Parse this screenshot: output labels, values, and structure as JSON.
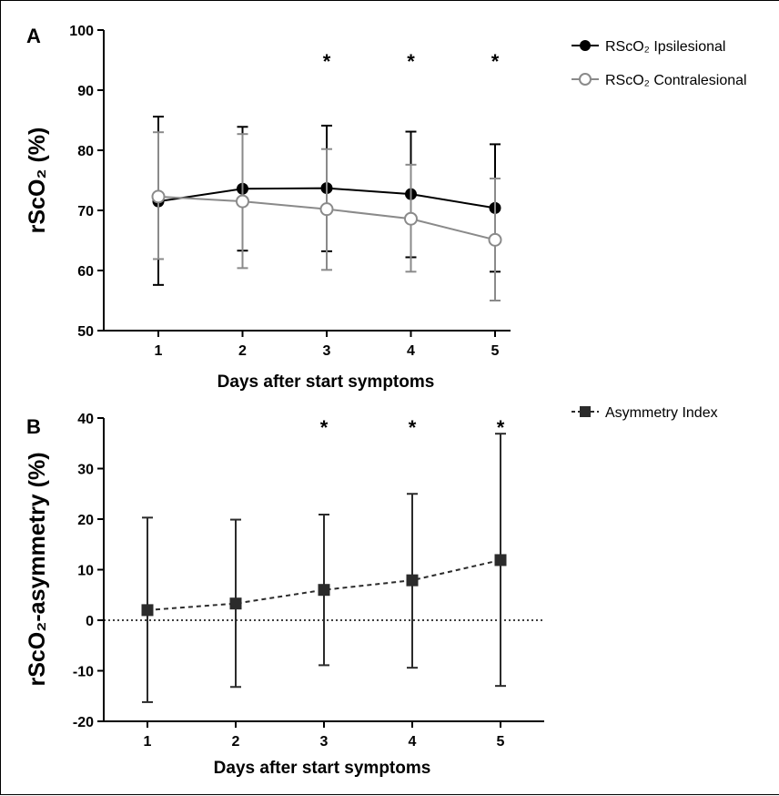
{
  "chart_data": [
    {
      "type": "line",
      "panel_label": "A",
      "xlabel": "Days after start symptoms",
      "ylabel": "rScO₂ (%)",
      "x": [
        1,
        2,
        3,
        4,
        5
      ],
      "x_ticks": [
        "1",
        "2",
        "3",
        "4",
        "5"
      ],
      "ylim": [
        50,
        100
      ],
      "y_ticks": [
        "50",
        "60",
        "70",
        "80",
        "90",
        "100"
      ],
      "grid": false,
      "legend": "top-right",
      "significance": [
        3,
        4,
        5
      ],
      "significance_marker": "*",
      "series": [
        {
          "name": "RScO₂ Ipsilesional",
          "values": [
            71.5,
            73.6,
            73.7,
            72.7,
            70.4
          ],
          "err_upper": [
            85.6,
            83.9,
            84.1,
            83.1,
            81.0
          ],
          "err_lower": [
            57.6,
            63.3,
            63.2,
            62.2,
            59.8
          ],
          "color": "#000000",
          "marker": "filled-circle"
        },
        {
          "name": "RScO₂ Contralesional",
          "values": [
            72.3,
            71.5,
            70.2,
            68.6,
            65.1
          ],
          "err_upper": [
            83.0,
            82.7,
            80.2,
            77.6,
            75.3
          ],
          "err_lower": [
            61.9,
            60.4,
            60.1,
            59.8,
            55.0
          ],
          "color": "#8a8a8a",
          "marker": "open-circle"
        }
      ]
    },
    {
      "type": "line",
      "panel_label": "B",
      "xlabel": "Days after start symptoms",
      "ylabel": "rScO₂-asymmetry (%)",
      "x": [
        1,
        2,
        3,
        4,
        5
      ],
      "x_ticks": [
        "1",
        "2",
        "3",
        "4",
        "5"
      ],
      "ylim": [
        -20,
        40
      ],
      "y_ticks": [
        "-20",
        "-10",
        "0",
        "10",
        "20",
        "30",
        "40"
      ],
      "grid": false,
      "reference_line": 0,
      "legend": "top-right",
      "significance": [
        3,
        4,
        5
      ],
      "significance_marker": "*",
      "series": [
        {
          "name": "Asymmetry Index",
          "values": [
            2.0,
            3.3,
            6.0,
            7.9,
            11.9
          ],
          "err_upper": [
            20.3,
            19.9,
            20.9,
            25.0,
            36.9
          ],
          "err_lower": [
            -16.2,
            -13.2,
            -8.9,
            -9.4,
            -13.0
          ],
          "color": "#2b2b2b",
          "marker": "filled-square",
          "dashed": true
        }
      ]
    }
  ]
}
